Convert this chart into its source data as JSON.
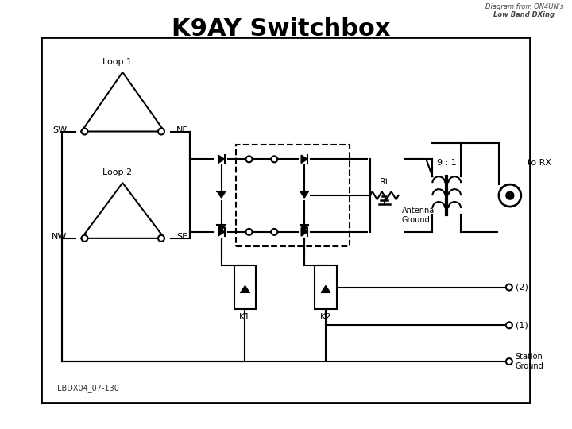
{
  "title": "K9AY Switchbox",
  "subtitle_line1": "Diagram from ON4UN's",
  "subtitle_line2": "Low Band DXing",
  "label_loop1": "Loop 1",
  "label_loop2": "Loop 2",
  "label_sw": "SW",
  "label_ne": "NE",
  "label_nw": "NW",
  "label_se": "SE",
  "label_9to1": "9 : 1",
  "label_torx": "to RX",
  "label_rt": "Rt",
  "label_antenna_ground": "Antenna\nGround",
  "label_k1": "K1",
  "label_k2": "K2",
  "label_2": "(2)",
  "label_1": "(1)",
  "label_station_ground": "Station\nGround",
  "label_lbdx": "LBDX04_07-130",
  "bg_color": "#ffffff",
  "title_fontsize": 22,
  "subtitle_fontsize": 6
}
